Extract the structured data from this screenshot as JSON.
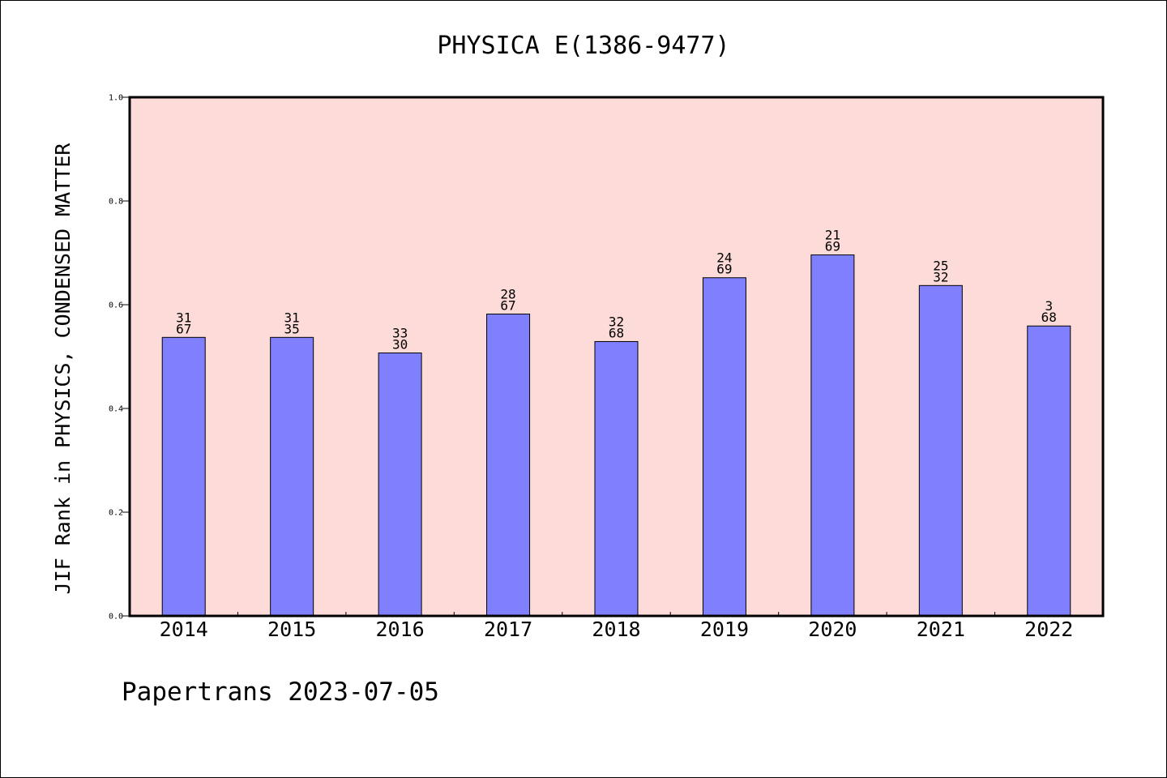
{
  "chart_data": {
    "type": "bar",
    "title": "PHYSICA E(1386-9477)",
    "ylabel": "JIF Rank in PHYSICS, CONDENSED MATTER",
    "xlabel": "",
    "ylim": [
      0,
      1.0
    ],
    "yticks": [
      "0.0",
      "0.2",
      "0.4",
      "0.6",
      "0.8",
      "1.0"
    ],
    "categories": [
      "2014",
      "2015",
      "2016",
      "2017",
      "2018",
      "2019",
      "2020",
      "2021",
      "2022"
    ],
    "values": [
      0.537,
      0.537,
      0.507,
      0.582,
      0.529,
      0.652,
      0.696,
      0.637,
      0.559
    ],
    "labels_top": [
      "31",
      "31",
      "33",
      "28",
      "32",
      "24",
      "21",
      "25",
      "3"
    ],
    "labels_bottom": [
      "67",
      "35",
      "30",
      "67",
      "68",
      "69",
      "69",
      "32",
      "68"
    ],
    "grid": false,
    "colors": {
      "plot_background": "#fddbd8",
      "bar_fill": "#8080ff",
      "bar_stroke": "#000000",
      "axis": "#000000"
    }
  },
  "footer": {
    "text": "Papertrans 2023-07-05"
  }
}
